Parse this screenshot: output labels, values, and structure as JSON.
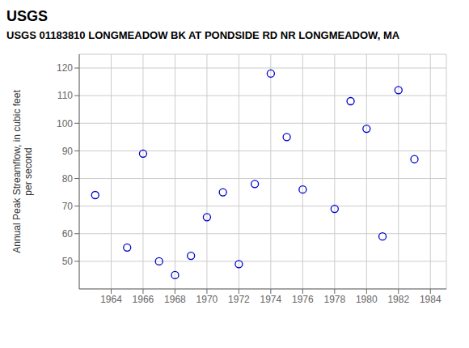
{
  "chart_data": {
    "type": "scatter",
    "title": "USGS 01183810 LONGMEADOW BK AT PONDSIDE RD NR LONGMEADOW, MA",
    "annotations": [
      "USGS"
    ],
    "ylabel": "Annual Peak Streamflow, in cubic feet\nper second",
    "x": [
      1963,
      1965,
      1966,
      1967,
      1968,
      1969,
      1970,
      1971,
      1972,
      1973,
      1974,
      1975,
      1976,
      1978,
      1979,
      1980,
      1981,
      1982,
      1983
    ],
    "values": [
      74,
      55,
      89,
      50,
      45,
      52,
      66,
      75,
      49,
      78,
      118,
      95,
      76,
      69,
      108,
      98,
      59,
      112,
      87
    ],
    "color": "#0000cc",
    "xlim": [
      1962,
      1985
    ],
    "ylim": [
      40,
      125
    ],
    "xticks": [
      1964,
      1966,
      1968,
      1970,
      1972,
      1974,
      1976,
      1978,
      1980,
      1982,
      1984
    ],
    "yticks": [
      50,
      60,
      70,
      80,
      90,
      100,
      110,
      120
    ],
    "grid": true
  }
}
